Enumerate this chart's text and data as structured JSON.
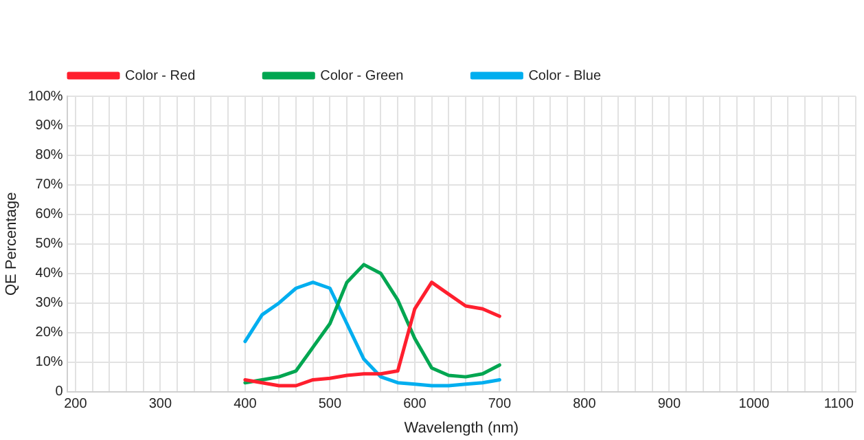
{
  "chart_data": {
    "type": "line",
    "xlabel": "Wavelength (nm)",
    "ylabel": "QE Percentage",
    "x": [
      400,
      420,
      440,
      460,
      480,
      500,
      520,
      540,
      560,
      580,
      600,
      620,
      640,
      660,
      680,
      700
    ],
    "series": [
      {
        "name": "Color - Red",
        "color": "#ff1f2e",
        "values": [
          4,
          3,
          2,
          2,
          4,
          4.5,
          5.5,
          6,
          6,
          7,
          28,
          37,
          33,
          29,
          28,
          25.5
        ]
      },
      {
        "name": "Color - Green",
        "color": "#00a651",
        "values": [
          3,
          4,
          5,
          7,
          15,
          23,
          37,
          43,
          40,
          31,
          18,
          8,
          5.5,
          5,
          6,
          9
        ]
      },
      {
        "name": "Color - Blue",
        "color": "#00aeef",
        "values": [
          17,
          26,
          30,
          35,
          37,
          35,
          23,
          11,
          5,
          3,
          2.5,
          2,
          2,
          2.5,
          3,
          4
        ]
      }
    ],
    "xlim": [
      190,
      1120
    ],
    "xticks": [
      200,
      {
        "value": 220,
        "label": null
      },
      {
        "value": 240,
        "label": null
      },
      {
        "value": 260,
        "label": null
      },
      {
        "value": 280,
        "label": null
      },
      300,
      {
        "value": 320,
        "label": null
      },
      {
        "value": 340,
        "label": null
      },
      {
        "value": 360,
        "label": null
      },
      {
        "value": 380,
        "label": null
      },
      400,
      {
        "value": 420,
        "label": null
      },
      {
        "value": 440,
        "label": null
      },
      {
        "value": 460,
        "label": null
      },
      {
        "value": 480,
        "label": null
      },
      500,
      {
        "value": 520,
        "label": null
      },
      {
        "value": 540,
        "label": null
      },
      {
        "value": 560,
        "label": null
      },
      {
        "value": 580,
        "label": null
      },
      600,
      {
        "value": 620,
        "label": null
      },
      {
        "value": 640,
        "label": null
      },
      {
        "value": 660,
        "label": null
      },
      {
        "value": 680,
        "label": null
      },
      700,
      {
        "value": 720,
        "label": null
      },
      {
        "value": 740,
        "label": null
      },
      {
        "value": 760,
        "label": null
      },
      {
        "value": 780,
        "label": null
      },
      800,
      {
        "value": 820,
        "label": null
      },
      {
        "value": 840,
        "label": null
      },
      {
        "value": 860,
        "label": null
      },
      {
        "value": 880,
        "label": null
      },
      900,
      {
        "value": 920,
        "label": null
      },
      {
        "value": 940,
        "label": null
      },
      {
        "value": 960,
        "label": null
      },
      {
        "value": 980,
        "label": null
      },
      1000,
      {
        "value": 1020,
        "label": null
      },
      {
        "value": 1040,
        "label": null
      },
      {
        "value": 1060,
        "label": null
      },
      {
        "value": 1080,
        "label": null
      },
      1100,
      {
        "value": 1120,
        "label": null
      }
    ],
    "ylim": [
      0,
      100
    ],
    "yticks": [
      0,
      {
        "value": 10,
        "label": "10%"
      },
      {
        "value": 20,
        "label": "20%"
      },
      {
        "value": 30,
        "label": "30%"
      },
      {
        "value": 40,
        "label": "40%"
      },
      {
        "value": 50,
        "label": "50%"
      },
      {
        "value": 60,
        "label": "60%"
      },
      {
        "value": 70,
        "label": "70%"
      },
      {
        "value": 80,
        "label": "80%"
      },
      {
        "value": 90,
        "label": "90%"
      },
      {
        "value": 100,
        "label": "100%"
      }
    ],
    "grid": true,
    "legend": "top left",
    "marker": "none",
    "line_style": "solid"
  }
}
